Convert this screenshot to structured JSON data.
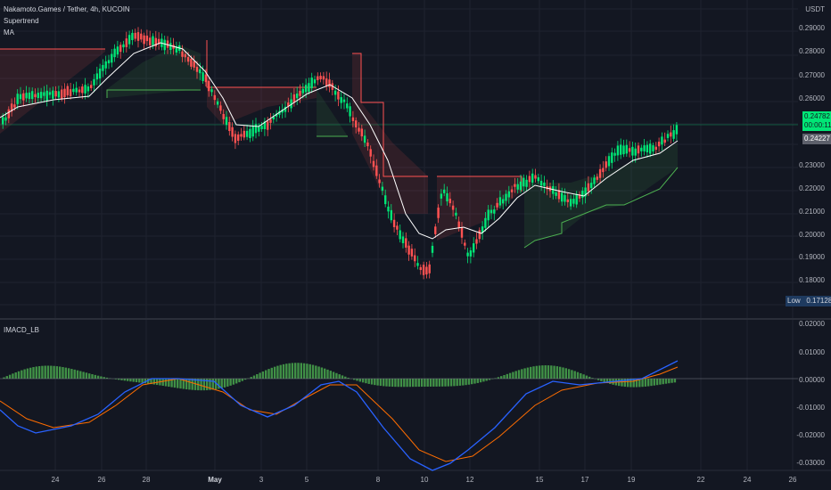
{
  "header": {
    "title": "Nakamoto.Games / Tether, 4h, KUCOIN",
    "indicator_1": "Supertrend",
    "indicator_2": "MA",
    "lower_indicator": "IMACD_LB"
  },
  "price_axis": {
    "currency": "USDT",
    "labels": [
      "0.29000",
      "0.28000",
      "0.27000",
      "0.26000",
      "0.23000",
      "0.22000",
      "0.21000",
      "0.20000",
      "0.19000",
      "0.18000"
    ],
    "current_price": "0.24782",
    "countdown": "00:00:11",
    "ma_value": "0.24227",
    "low_label": "Low",
    "low_value": "0.17128"
  },
  "macd_axis": {
    "labels": [
      "0.02000",
      "0.01000",
      "0.00000",
      "-0.01000",
      "-0.02000",
      "-0.03000"
    ]
  },
  "time_axis": {
    "labels": [
      "24",
      "26",
      "28",
      "May",
      "3",
      "5",
      "8",
      "10",
      "12",
      "15",
      "17",
      "19",
      "22",
      "24",
      "26"
    ]
  },
  "colors": {
    "background": "#131722",
    "bull": "#00e676",
    "bear": "#ff5252",
    "ma": "#ffffff",
    "macd": "#2962ff",
    "signal": "#ff6d00",
    "hist": "#4caf50",
    "current_tag": "#00e676"
  }
}
